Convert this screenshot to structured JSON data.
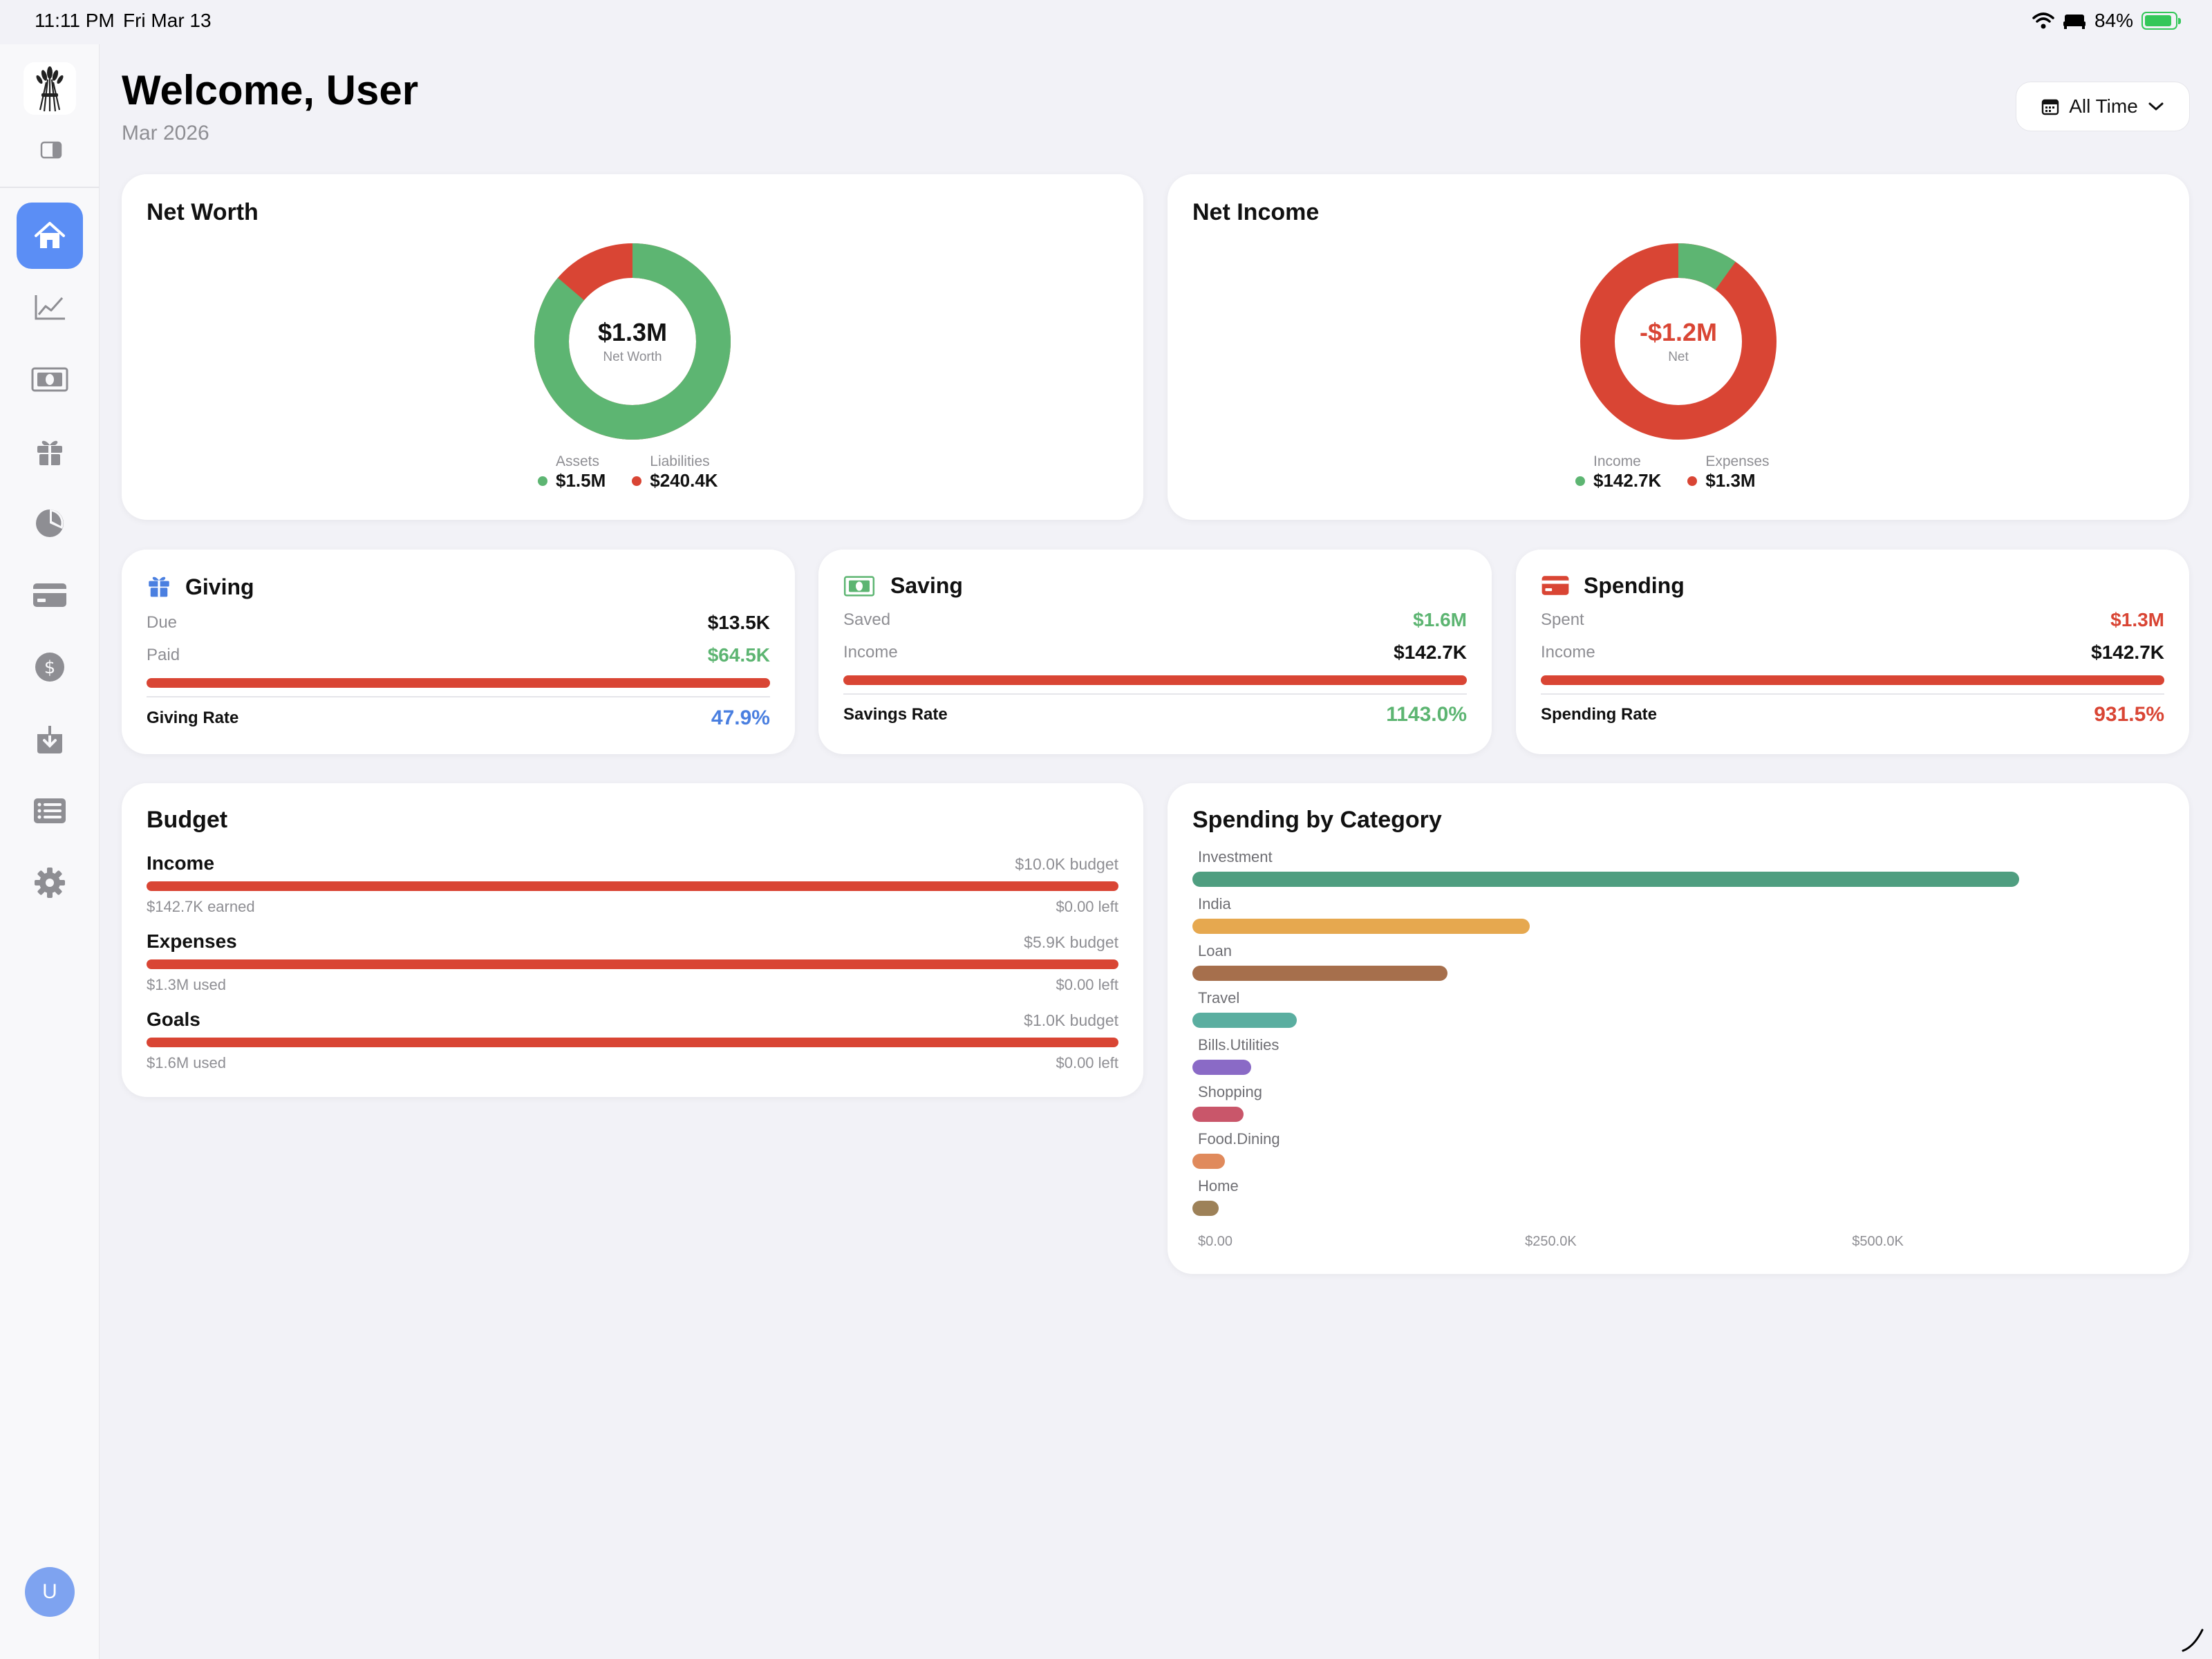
{
  "status_bar": {
    "time": "11:11 PM",
    "date": "Fri Mar 13",
    "battery": "84%"
  },
  "sidebar": {
    "items": [
      {
        "name": "home-icon",
        "active": true
      },
      {
        "name": "chart-line-icon",
        "active": false
      },
      {
        "name": "banknote-icon",
        "active": false
      },
      {
        "name": "gift-icon",
        "active": false
      },
      {
        "name": "pie-chart-icon",
        "active": false
      },
      {
        "name": "credit-card-icon",
        "active": false
      },
      {
        "name": "dollar-icon",
        "active": false
      },
      {
        "name": "download-icon",
        "active": false
      },
      {
        "name": "list-icon",
        "active": false
      },
      {
        "name": "gear-icon",
        "active": false
      }
    ],
    "avatar_initial": "U"
  },
  "header": {
    "title": "Welcome, User",
    "subtitle": "Mar 2026",
    "range_label": "All Time"
  },
  "net_worth": {
    "title": "Net Worth",
    "center_value": "$1.3M",
    "center_label": "Net Worth",
    "assets_label": "Assets",
    "assets_value": "$1.5M",
    "liabilities_label": "Liabilities",
    "liabilities_value": "$240.4K",
    "assets_share": 0.862
  },
  "net_income": {
    "title": "Net Income",
    "center_value": "-$1.2M",
    "center_label": "Net",
    "income_label": "Income",
    "income_value": "$142.7K",
    "expenses_label": "Expenses",
    "expenses_value": "$1.3M",
    "income_share": 0.099
  },
  "giving": {
    "title": "Giving",
    "row1_label": "Due",
    "row1_value": "$13.5K",
    "row2_label": "Paid",
    "row2_value": "$64.5K",
    "rate_label": "Giving Rate",
    "rate_value": "47.9%"
  },
  "saving": {
    "title": "Saving",
    "row1_label": "Saved",
    "row1_value": "$1.6M",
    "row2_label": "Income",
    "row2_value": "$142.7K",
    "rate_label": "Savings Rate",
    "rate_value": "1143.0%"
  },
  "spending": {
    "title": "Spending",
    "row1_label": "Spent",
    "row1_value": "$1.3M",
    "row2_label": "Income",
    "row2_value": "$142.7K",
    "rate_label": "Spending Rate",
    "rate_value": "931.5%"
  },
  "budget": {
    "title": "Budget",
    "items": [
      {
        "name": "Income",
        "budget": "$10.0K budget",
        "used": "$142.7K earned",
        "left": "$0.00 left"
      },
      {
        "name": "Expenses",
        "budget": "$5.9K budget",
        "used": "$1.3M used",
        "left": "$0.00 left"
      },
      {
        "name": "Goals",
        "budget": "$1.0K budget",
        "used": "$1.6M used",
        "left": "$0.00 left"
      }
    ]
  },
  "colors": {
    "green": "#5db572",
    "red": "#d94534",
    "blue": "#4a7fe0",
    "accent": "#5b8ef5"
  },
  "chart_data": {
    "type": "bar",
    "title": "Spending by Category",
    "orientation": "horizontal",
    "categories": [
      "Investment",
      "India",
      "Loan",
      "Travel",
      "Bills.Utilities",
      "Shopping",
      "Food.Dining",
      "Home"
    ],
    "values": [
      632000,
      258000,
      195000,
      80000,
      45000,
      39000,
      25000,
      20000
    ],
    "colors": [
      "#4f9e80",
      "#e6a84f",
      "#a66f4c",
      "#5aaea0",
      "#8a6ac6",
      "#c9566a",
      "#e08a5c",
      "#9d8158"
    ],
    "x_ticks": [
      "$0.00",
      "$250.0K",
      "$500.0K"
    ],
    "xlim": [
      0,
      745000
    ]
  }
}
